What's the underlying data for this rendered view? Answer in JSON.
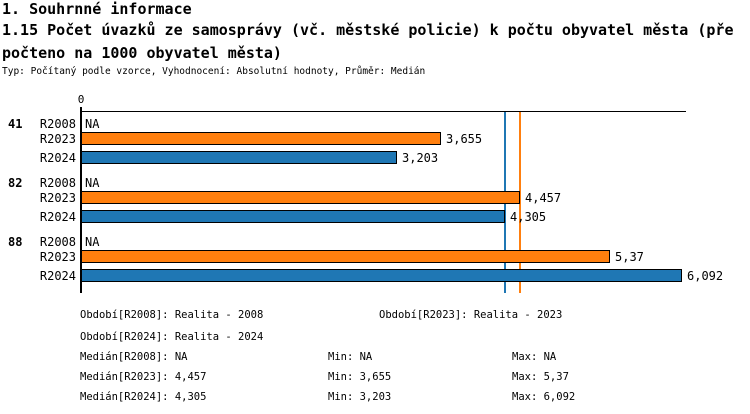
{
  "header": {
    "section_title": "1. Souhrnné informace",
    "indicator_title": "1.15 Počet úvazků ze samosprávy (vč. městské policie) k počtu obyvatel města (přepočteno na 1000 obyvatel města)",
    "meta_line": "Typ: Počítaný podle vzorce, Vyhodnocení: Absolutní hodnoty, Průměr: Medián"
  },
  "chart_data": {
    "type": "bar",
    "orientation": "horizontal",
    "origin_tick_label": "0",
    "xlim": [
      0,
      6.14
    ],
    "grid": false,
    "na_text": "NA",
    "series_colors": {
      "R2023": "#FF7F0E",
      "R2024": "#1F77B4"
    },
    "groups": [
      {
        "label": "41",
        "bars": [
          {
            "series": "R2008",
            "value": null,
            "display": "NA"
          },
          {
            "series": "R2023",
            "value": 3.655,
            "display": "3,655"
          },
          {
            "series": "R2024",
            "value": 3.203,
            "display": "3,203"
          }
        ]
      },
      {
        "label": "82",
        "bars": [
          {
            "series": "R2008",
            "value": null,
            "display": "NA"
          },
          {
            "series": "R2023",
            "value": 4.457,
            "display": "4,457"
          },
          {
            "series": "R2024",
            "value": 4.305,
            "display": "4,305"
          }
        ]
      },
      {
        "label": "88",
        "bars": [
          {
            "series": "R2008",
            "value": null,
            "display": "NA"
          },
          {
            "series": "R2023",
            "value": 5.37,
            "display": "5,37"
          },
          {
            "series": "R2024",
            "value": 6.092,
            "display": "6,092"
          }
        ]
      }
    ],
    "reference_lines": [
      {
        "name": "median-R2023",
        "value": 4.457,
        "color": "#FF7F0E"
      },
      {
        "name": "median-R2024",
        "value": 4.305,
        "color": "#1F77B4"
      }
    ]
  },
  "stats": {
    "obdobi_r2008": "Období[R2008]: Realita - 2008",
    "obdobi_r2023": "Období[R2023]: Realita - 2023",
    "obdobi_r2024": "Období[R2024]: Realita - 2024",
    "median_r2008": "Medián[R2008]: NA",
    "min_r2008": "Min: NA",
    "max_r2008": "Max: NA",
    "median_r2023": "Medián[R2023]: 4,457",
    "min_r2023": "Min: 3,655",
    "max_r2023": "Max: 5,37",
    "median_r2024": "Medián[R2024]: 4,305",
    "min_r2024": "Min: 3,203",
    "max_r2024": "Max: 6,092"
  }
}
